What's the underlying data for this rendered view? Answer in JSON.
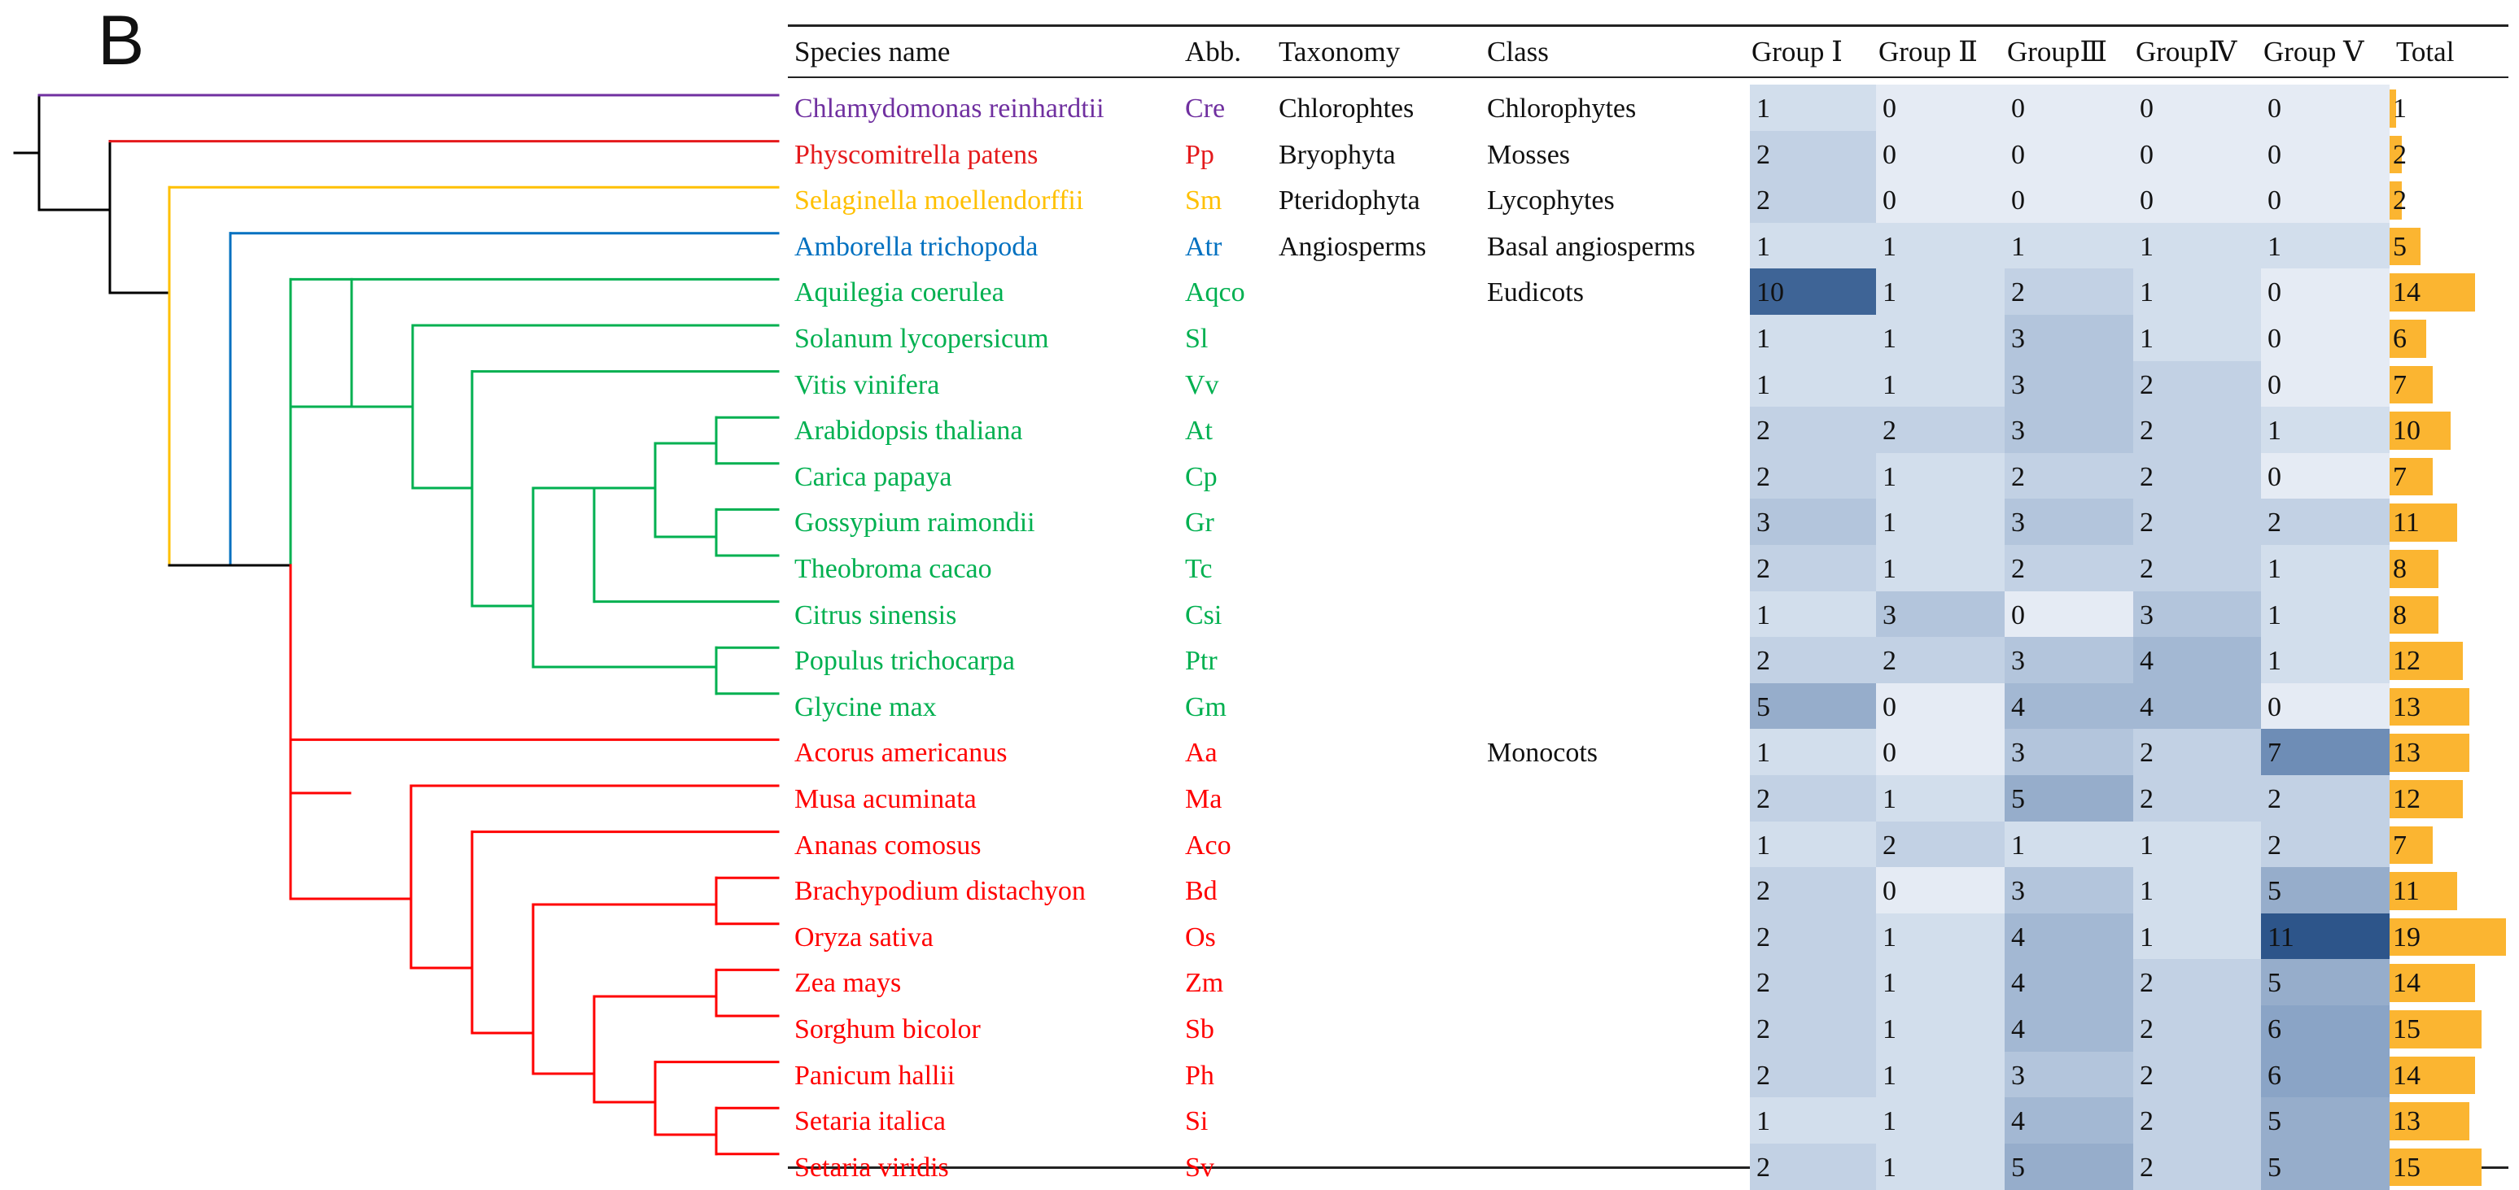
{
  "panel_label": "B",
  "headers": {
    "species": "Species name",
    "abb": "Abb.",
    "taxonomy": "Taxonomy",
    "class": "Class",
    "groups": [
      "Group Ⅰ",
      "Group Ⅱ",
      "GroupⅢ",
      "GroupⅣ",
      "Group Ⅴ"
    ],
    "total": "Total"
  },
  "clade_colors": {
    "chlorophytes": "#7030A0",
    "mosses": "#E41A1C",
    "lycophytes": "#FFC000",
    "basal": "#0070C0",
    "eudicots": "#00B050",
    "monocots": "#FF0000",
    "backbone": "#000000"
  },
  "heat_colors": {
    "v0": "#E5EBF4",
    "v1": "#D2DEEC",
    "v2": "#C2D1E4",
    "v3": "#B3C5DC",
    "v4": "#A3B8D3",
    "v5": "#96ADCB",
    "v6": "#8AA4C6",
    "v7": "#6E8DB6",
    "v10": "#3E6496",
    "v11": "#2D558A"
  },
  "bar_color": "#FBB531",
  "species": [
    {
      "name": "Chlamydomonas reinhardtii",
      "abb": "Cre",
      "taxonomy": "Chlorophtes",
      "class": "Chlorophytes",
      "color": "#7030A0",
      "groups": [
        1,
        0,
        0,
        0,
        0
      ],
      "total": 1
    },
    {
      "name": "Physcomitrella patens",
      "abb": "Pp",
      "taxonomy": "Bryophyta",
      "class": "Mosses",
      "color": "#E41A1C",
      "groups": [
        2,
        0,
        0,
        0,
        0
      ],
      "total": 2
    },
    {
      "name": "Selaginella moellendorffii",
      "abb": "Sm",
      "taxonomy": "Pteridophyta",
      "class": "Lycophytes",
      "color": "#FFC000",
      "groups": [
        2,
        0,
        0,
        0,
        0
      ],
      "total": 2
    },
    {
      "name": "Amborella trichopoda",
      "abb": "Atr",
      "taxonomy": "Angiosperms",
      "class": "Basal angiosperms",
      "color": "#0070C0",
      "groups": [
        1,
        1,
        1,
        1,
        1
      ],
      "total": 5
    },
    {
      "name": "Aquilegia coerulea",
      "abb": "Aqco",
      "taxonomy": "",
      "class": "Eudicots",
      "color": "#00B050",
      "groups": [
        10,
        1,
        2,
        1,
        0
      ],
      "total": 14
    },
    {
      "name": "Solanum lycopersicum",
      "abb": "Sl",
      "taxonomy": "",
      "class": "",
      "color": "#00B050",
      "groups": [
        1,
        1,
        3,
        1,
        0
      ],
      "total": 6
    },
    {
      "name": "Vitis vinifera",
      "abb": "Vv",
      "taxonomy": "",
      "class": "",
      "color": "#00B050",
      "groups": [
        1,
        1,
        3,
        2,
        0
      ],
      "total": 7
    },
    {
      "name": "Arabidopsis thaliana",
      "abb": "At",
      "taxonomy": "",
      "class": "",
      "color": "#00B050",
      "groups": [
        2,
        2,
        3,
        2,
        1
      ],
      "total": 10
    },
    {
      "name": "Carica papaya",
      "abb": "Cp",
      "taxonomy": "",
      "class": "",
      "color": "#00B050",
      "groups": [
        2,
        1,
        2,
        2,
        0
      ],
      "total": 7
    },
    {
      "name": "Gossypium raimondii",
      "abb": "Gr",
      "taxonomy": "",
      "class": "",
      "color": "#00B050",
      "groups": [
        3,
        1,
        3,
        2,
        2
      ],
      "total": 11
    },
    {
      "name": "Theobroma cacao",
      "abb": "Tc",
      "taxonomy": "",
      "class": "",
      "color": "#00B050",
      "groups": [
        2,
        1,
        2,
        2,
        1
      ],
      "total": 8
    },
    {
      "name": "Citrus sinensis",
      "abb": "Csi",
      "taxonomy": "",
      "class": "",
      "color": "#00B050",
      "groups": [
        1,
        3,
        0,
        3,
        1
      ],
      "total": 8
    },
    {
      "name": "Populus trichocarpa",
      "abb": "Ptr",
      "taxonomy": "",
      "class": "",
      "color": "#00B050",
      "groups": [
        2,
        2,
        3,
        4,
        1
      ],
      "total": 12
    },
    {
      "name": "Glycine max",
      "abb": "Gm",
      "taxonomy": "",
      "class": "",
      "color": "#00B050",
      "groups": [
        5,
        0,
        4,
        4,
        0
      ],
      "total": 13
    },
    {
      "name": "Acorus americanus",
      "abb": "Aa",
      "taxonomy": "",
      "class": "Monocots",
      "color": "#FF0000",
      "groups": [
        1,
        0,
        3,
        2,
        7
      ],
      "total": 13
    },
    {
      "name": "Musa acuminata",
      "abb": "Ma",
      "taxonomy": "",
      "class": "",
      "color": "#FF0000",
      "groups": [
        2,
        1,
        5,
        2,
        2
      ],
      "total": 12
    },
    {
      "name": "Ananas comosus",
      "abb": "Aco",
      "taxonomy": "",
      "class": "",
      "color": "#FF0000",
      "groups": [
        1,
        2,
        1,
        1,
        2
      ],
      "total": 7
    },
    {
      "name": "Brachypodium distachyon",
      "abb": "Bd",
      "taxonomy": "",
      "class": "",
      "color": "#FF0000",
      "groups": [
        2,
        0,
        3,
        1,
        5
      ],
      "total": 11
    },
    {
      "name": "Oryza sativa",
      "abb": "Os",
      "taxonomy": "",
      "class": "",
      "color": "#FF0000",
      "groups": [
        2,
        1,
        4,
        1,
        11
      ],
      "total": 19
    },
    {
      "name": "Zea mays",
      "abb": "Zm",
      "taxonomy": "",
      "class": "",
      "color": "#FF0000",
      "groups": [
        2,
        1,
        4,
        2,
        5
      ],
      "total": 14
    },
    {
      "name": "Sorghum bicolor",
      "abb": "Sb",
      "taxonomy": "",
      "class": "",
      "color": "#FF0000",
      "groups": [
        2,
        1,
        4,
        2,
        6
      ],
      "total": 15
    },
    {
      "name": "Panicum hallii",
      "abb": "Ph",
      "taxonomy": "",
      "class": "",
      "color": "#FF0000",
      "groups": [
        2,
        1,
        3,
        2,
        6
      ],
      "total": 14
    },
    {
      "name": "Setaria italica",
      "abb": "Si",
      "taxonomy": "",
      "class": "",
      "color": "#FF0000",
      "groups": [
        1,
        1,
        4,
        2,
        5
      ],
      "total": 13
    },
    {
      "name": "Setaria viridis",
      "abb": "Sv",
      "taxonomy": "",
      "class": "",
      "color": "#FF0000",
      "groups": [
        2,
        1,
        5,
        2,
        5
      ],
      "total": 15
    }
  ]
}
